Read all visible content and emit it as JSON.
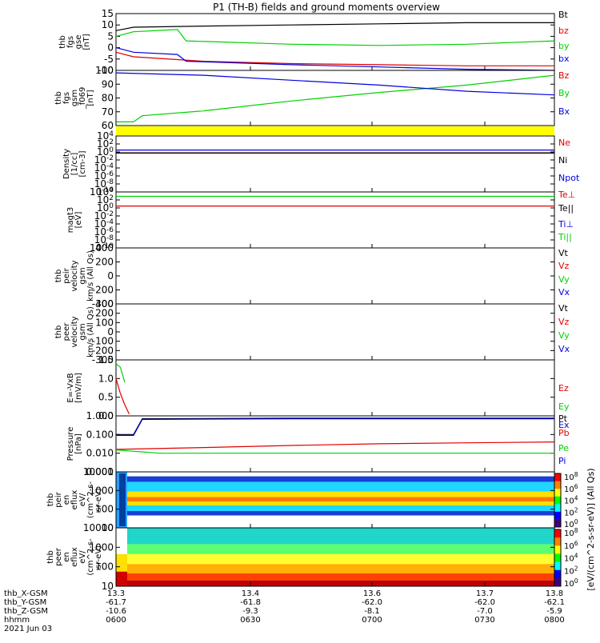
{
  "title": "P1 (TH-B) fields and ground moments overview",
  "colors": {
    "black": "#000000",
    "red": "#e00000",
    "green": "#00d000",
    "blue": "#0000e0",
    "yellow": "#ffff00"
  },
  "chart_data": [
    {
      "type": "line",
      "panel": "fgs_gse",
      "ylabel": [
        "thb",
        "fgs",
        "gse",
        "[nT]"
      ],
      "ylim": [
        -10,
        15
      ],
      "yticks": [
        "15",
        "10",
        "5",
        "0",
        "-5",
        "-10"
      ],
      "legend": [
        "Bt",
        "bz",
        "by",
        "bx"
      ],
      "legend_colors": [
        "black",
        "red",
        "green",
        "blue"
      ],
      "series": [
        {
          "name": "Bt",
          "color": "black",
          "x": [
            13.3,
            13.32,
            13.4,
            13.5,
            13.6,
            13.7,
            13.8
          ],
          "y": [
            7.5,
            9,
            9.5,
            10,
            10.5,
            11,
            11
          ]
        },
        {
          "name": "bz",
          "color": "red",
          "x": [
            13.3,
            13.32,
            13.4,
            13.5,
            13.6,
            13.7,
            13.8
          ],
          "y": [
            -2,
            -4,
            -6,
            -7,
            -7.5,
            -8,
            -8
          ]
        },
        {
          "name": "by",
          "color": "green",
          "x": [
            13.3,
            13.32,
            13.37,
            13.38,
            13.5,
            13.6,
            13.7,
            13.8
          ],
          "y": [
            5,
            7,
            8,
            3,
            1.5,
            1,
            1.5,
            3
          ]
        },
        {
          "name": "bx",
          "color": "blue",
          "x": [
            13.3,
            13.32,
            13.37,
            13.38,
            13.5,
            13.6,
            13.7,
            13.8
          ],
          "y": [
            0,
            -2,
            -3,
            -6,
            -7.5,
            -8.5,
            -9.5,
            -10
          ]
        }
      ]
    },
    {
      "type": "line",
      "panel": "fgs_gsm",
      "ylabel": [
        "thb",
        "fgs",
        "gsm",
        "_f069",
        "[nT]"
      ],
      "ylim": [
        55,
        100
      ],
      "yticks": [
        "100",
        "90",
        "80",
        "70",
        "60"
      ],
      "legend": [
        "Bz",
        "By",
        "Bx"
      ],
      "legend_colors": [
        "red",
        "green",
        "blue"
      ],
      "series": [
        {
          "name": "By",
          "color": "green",
          "x": [
            13.3,
            13.32,
            13.33,
            13.4,
            13.5,
            13.6,
            13.7,
            13.8
          ],
          "y": [
            58,
            58,
            63,
            67,
            75,
            82,
            88,
            96
          ]
        },
        {
          "name": "Bx",
          "color": "blue",
          "x": [
            13.3,
            13.4,
            13.5,
            13.6,
            13.7,
            13.8
          ],
          "y": [
            98,
            96,
            92,
            88,
            83,
            80
          ]
        }
      ]
    },
    {
      "type": "line",
      "panel": "density",
      "ylabel": [
        "Density",
        "[1/cc]",
        "[cm-3]"
      ],
      "yticks": [
        "10^4",
        "10^2",
        "10^0",
        "10^-2",
        "10^-4",
        "10^-6",
        "10^-8",
        "10^-10"
      ],
      "legend": [
        "Ne",
        "Ni",
        "Npot"
      ],
      "legend_colors": [
        "red",
        "black",
        "blue"
      ],
      "series": [
        {
          "name": "Ne",
          "color": "red",
          "x": [
            13.3,
            13.8
          ],
          "y": [
            0.5,
            0.5
          ]
        },
        {
          "name": "Ni",
          "color": "black",
          "x": [
            13.3,
            13.8
          ],
          "y": [
            0.6,
            0.6
          ]
        },
        {
          "name": "Npot",
          "color": "blue",
          "x": [
            13.3,
            13.8
          ],
          "y": [
            3,
            3
          ]
        }
      ]
    },
    {
      "type": "line",
      "panel": "temperature",
      "ylabel": [
        "magt3",
        "[eV]"
      ],
      "yticks": [
        "10^4",
        "10^2",
        "10^0",
        "10^-2",
        "10^-4",
        "10^-6",
        "10^-8",
        "10^-10"
      ],
      "legend": [
        "Te⊥",
        "Te||",
        "Ti⊥",
        "Ti||"
      ],
      "legend_colors": [
        "red",
        "black",
        "blue",
        "green"
      ],
      "series": [
        {
          "name": "Te⊥",
          "color": "red",
          "x": [
            13.3,
            13.8
          ],
          "y": [
            3,
            3
          ]
        },
        {
          "name": "Ti||",
          "color": "green",
          "x": [
            13.3,
            13.8
          ],
          "y": [
            800,
            800
          ]
        }
      ]
    },
    {
      "type": "line",
      "panel": "peir_velocity",
      "ylabel": [
        "thb",
        "peir",
        "velocity",
        "gsm",
        "km/s (All Qs)"
      ],
      "ylim": [
        -400,
        400
      ],
      "yticks": [
        "400",
        "200",
        "0",
        "-200",
        "-400"
      ],
      "legend": [
        "Vt",
        "Vz",
        "Vy",
        "Vx"
      ],
      "legend_colors": [
        "black",
        "red",
        "green",
        "blue"
      ],
      "series": []
    },
    {
      "type": "line",
      "panel": "peer_velocity",
      "ylabel": [
        "thb",
        "peer",
        "velocity",
        "gsm",
        "km/s (All Qs)"
      ],
      "ylim": [
        -300,
        300
      ],
      "yticks": [
        "300",
        "200",
        "100",
        "0",
        "-100",
        "-200",
        "-300"
      ],
      "legend": [
        "Vt",
        "Vz",
        "Vy",
        "Vx"
      ],
      "legend_colors": [
        "black",
        "red",
        "green",
        "blue"
      ],
      "series": []
    },
    {
      "type": "line",
      "panel": "efield",
      "ylabel": [
        "E=-VxB",
        "[mV/m]"
      ],
      "ylim": [
        0,
        1.5
      ],
      "yticks": [
        "1.5",
        "1.0",
        "0.5",
        "0.0"
      ],
      "legend": [
        "Ez",
        "Ey",
        "Ex"
      ],
      "legend_colors": [
        "red",
        "green",
        "blue"
      ],
      "series": [
        {
          "name": "Ez",
          "color": "red",
          "x": [
            13.3,
            13.305,
            13.31,
            13.315
          ],
          "y": [
            1.0,
            0.6,
            0.3,
            0.05
          ]
        },
        {
          "name": "Ey",
          "color": "green",
          "x": [
            13.3,
            13.305,
            13.31
          ],
          "y": [
            1.4,
            1.3,
            0.9
          ]
        }
      ]
    },
    {
      "type": "line",
      "panel": "pressure",
      "ylabel": [
        "Pressure",
        "[nPa]"
      ],
      "yticks": [
        "1.000",
        "0.100",
        "0.010",
        "0.001"
      ],
      "legend": [
        "Pt",
        "Pb",
        "Pe",
        "Pi"
      ],
      "legend_colors": [
        "black",
        "red",
        "green",
        "blue"
      ],
      "series": [
        {
          "name": "Pt",
          "color": "black",
          "x": [
            13.3,
            13.32,
            13.33,
            13.5,
            13.8
          ],
          "y": [
            0.1,
            0.1,
            0.7,
            0.75,
            0.75
          ]
        },
        {
          "name": "Pi",
          "color": "blue",
          "x": [
            13.3,
            13.32,
            13.33,
            13.5,
            13.8
          ],
          "y": [
            0.09,
            0.09,
            0.65,
            0.7,
            0.7
          ]
        },
        {
          "name": "Pb",
          "color": "red",
          "x": [
            13.3,
            13.4,
            13.5,
            13.6,
            13.7,
            13.8
          ],
          "y": [
            0.016,
            0.02,
            0.026,
            0.032,
            0.036,
            0.04
          ]
        },
        {
          "name": "Pe",
          "color": "green",
          "x": [
            13.3,
            13.35,
            13.5,
            13.8
          ],
          "y": [
            0.015,
            0.01,
            0.01,
            0.01
          ]
        }
      ]
    },
    {
      "type": "heatmap",
      "panel": "peir_eflux",
      "ylabel": [
        "thb",
        "peir",
        "en",
        "eflux",
        "eV/",
        "(cm^2-s-",
        "sr-eV)"
      ],
      "yticks": [
        "10000",
        "1000",
        "100",
        "10"
      ]
    },
    {
      "type": "heatmap",
      "panel": "peer_eflux",
      "ylabel": [
        "thb",
        "peer",
        "en",
        "eflux",
        "eV/",
        "(cm^2-s-",
        "sr-eV)"
      ],
      "yticks": [
        "10000",
        "1000",
        "100",
        "10"
      ]
    }
  ],
  "colorbar": {
    "ticks": [
      "10^8",
      "10^6",
      "10^4",
      "10^2",
      "10^0"
    ],
    "label": "[eV/(cm^2-s-sr-eV)] (All Qs)"
  },
  "xaxis": {
    "row_labels": [
      "thb_X-GSM",
      "thb_Y-GSM",
      "thb_Z-GSM",
      "hhmm",
      "2021 Jun 03"
    ],
    "columns": [
      {
        "x": "13.3",
        "y": "-61.7",
        "z": "-10.6",
        "t": "0600"
      },
      {
        "x": "13.4",
        "y": "-61.8",
        "z": "-9.3",
        "t": "0630"
      },
      {
        "x": "13.6",
        "y": "-62.0",
        "z": "-8.1",
        "t": "0700"
      },
      {
        "x": "13.7",
        "y": "-62.0",
        "z": "-7.0",
        "t": "0730"
      },
      {
        "x": "13.8",
        "y": "-62.1",
        "z": "-5.9",
        "t": "0800"
      }
    ]
  }
}
